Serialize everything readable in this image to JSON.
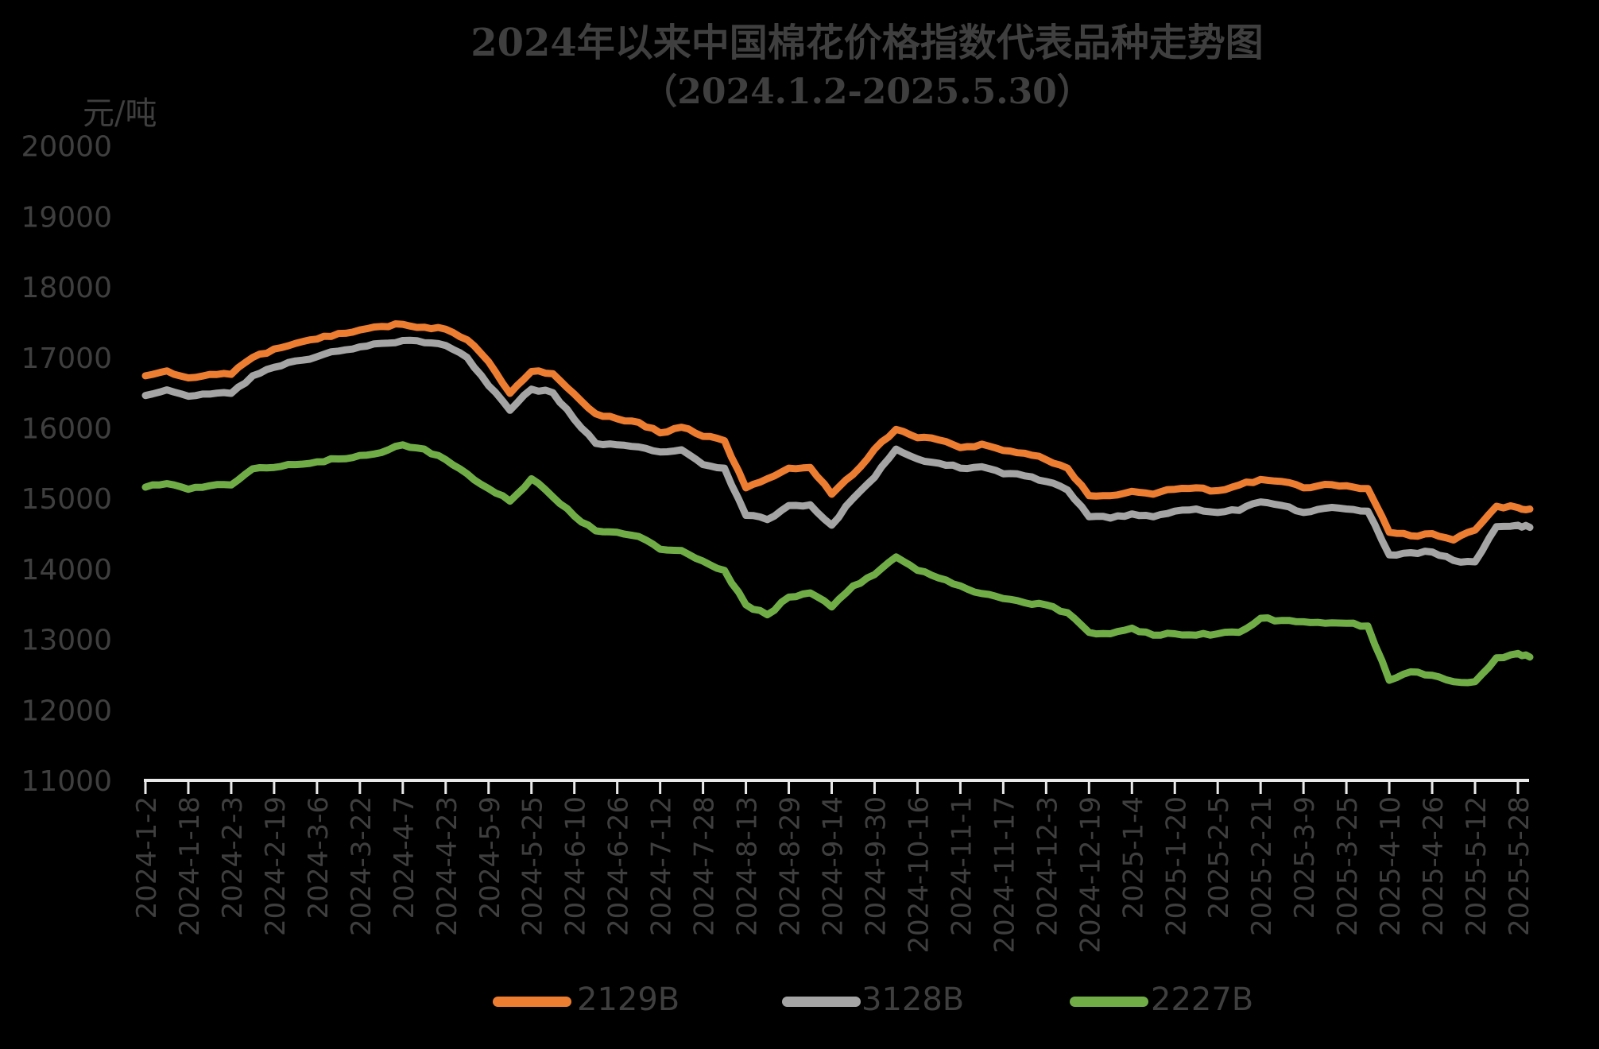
{
  "page": {
    "background": "#000000",
    "text_color": "#3F3F3F",
    "axis_color": "#E9E9E9"
  },
  "header": {
    "title": "2024年以来中国棉花价格指数代表品种走势图",
    "subtitle": "（2024.1.2-2025.5.30）"
  },
  "axes": {
    "unit_label": "元/吨"
  },
  "legend": [
    {
      "label": "2129B",
      "color": "#ED7D31"
    },
    {
      "label": "3128B",
      "color": "#A5A5A5"
    },
    {
      "label": "2227B",
      "color": "#70AD47"
    }
  ],
  "chart_data": {
    "type": "line",
    "title": "2024年以来中国棉花价格指数代表品种走势图",
    "subtitle": "（2024.1.2-2025.5.30）",
    "ylabel": "元/吨",
    "ylim": [
      11000,
      20000
    ],
    "ytick_interval": 1000,
    "yticks": [
      11000,
      12000,
      13000,
      14000,
      15000,
      16000,
      17000,
      18000,
      19000,
      20000
    ],
    "grid": false,
    "legend_position": "bottom",
    "x_tick_labels": [
      "2024-1-2",
      "2024-1-18",
      "2024-2-3",
      "2024-2-19",
      "2024-3-6",
      "2024-3-22",
      "2024-4-7",
      "2024-4-23",
      "2024-5-9",
      "2024-5-25",
      "2024-6-10",
      "2024-6-26",
      "2024-7-12",
      "2024-7-28",
      "2024-8-13",
      "2024-8-29",
      "2024-9-14",
      "2024-9-30",
      "2024-10-16",
      "2024-11-1",
      "2024-11-17",
      "2024-12-3",
      "2024-12-19",
      "2025-1-4",
      "2025-1-20",
      "2025-2-5",
      "2025-2-21",
      "2025-3-9",
      "2025-3-25",
      "2025-4-10",
      "2025-4-26",
      "2025-5-12",
      "2025-5-28"
    ],
    "samples_per_tick_interval": 2,
    "series": [
      {
        "name": "2129B",
        "color": "#ED7D31",
        "values": [
          16740,
          16810,
          16710,
          16760,
          16760,
          17000,
          17120,
          17200,
          17260,
          17340,
          17390,
          17440,
          17470,
          17430,
          17400,
          17250,
          16940,
          16490,
          16800,
          16770,
          16480,
          16200,
          16130,
          16080,
          15930,
          16010,
          15880,
          15820,
          15150,
          15280,
          15430,
          15440,
          15060,
          15340,
          15700,
          15980,
          15860,
          15830,
          15720,
          15770,
          15680,
          15640,
          15550,
          15430,
          15040,
          15040,
          15100,
          15060,
          15130,
          15150,
          15110,
          15190,
          15270,
          15240,
          15150,
          15200,
          15180,
          15140,
          14520,
          14470,
          14500,
          14410,
          14550,
          14890,
          14870,
          14850
        ]
      },
      {
        "name": "3128B",
        "color": "#A5A5A5",
        "values": [
          16460,
          16540,
          16450,
          16480,
          16490,
          16740,
          16860,
          16950,
          17010,
          17090,
          17150,
          17200,
          17240,
          17210,
          17170,
          17000,
          16600,
          16250,
          16550,
          16500,
          16120,
          15780,
          15760,
          15730,
          15660,
          15690,
          15480,
          15430,
          14760,
          14700,
          14900,
          14910,
          14620,
          15000,
          15300,
          15700,
          15560,
          15500,
          15430,
          15450,
          15350,
          15320,
          15240,
          15120,
          14740,
          14720,
          14780,
          14740,
          14820,
          14850,
          14800,
          14830,
          14950,
          14900,
          14800,
          14860,
          14850,
          14820,
          14200,
          14230,
          14240,
          14120,
          14100,
          14600,
          14620,
          14590
        ]
      },
      {
        "name": "2227B",
        "color": "#70AD47",
        "values": [
          15160,
          15210,
          15130,
          15180,
          15190,
          15420,
          15440,
          15480,
          15520,
          15560,
          15610,
          15650,
          15760,
          15700,
          15550,
          15350,
          15140,
          14960,
          15280,
          15020,
          14750,
          14540,
          14520,
          14460,
          14280,
          14260,
          14110,
          13980,
          13490,
          13350,
          13600,
          13660,
          13460,
          13760,
          13920,
          14170,
          13980,
          13870,
          13760,
          13650,
          13580,
          13520,
          13490,
          13380,
          13100,
          13080,
          13160,
          13060,
          13080,
          13060,
          13080,
          13100,
          13300,
          13270,
          13250,
          13230,
          13230,
          13190,
          12420,
          12540,
          12490,
          12400,
          12400,
          12740,
          12800,
          12750
        ]
      }
    ]
  }
}
